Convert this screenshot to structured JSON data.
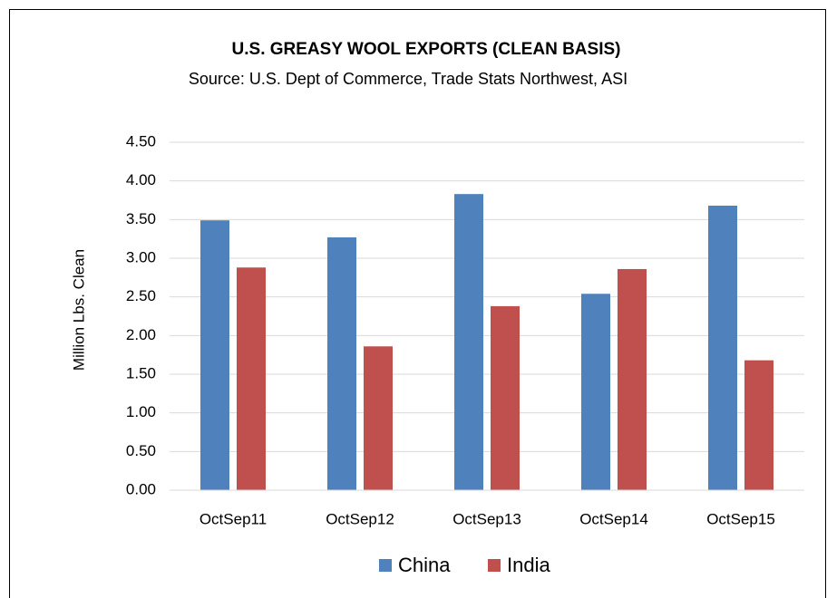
{
  "chart_data": {
    "type": "bar",
    "title": "U.S. GREASY WOOL EXPORTS (CLEAN BASIS)",
    "subtitle": "Source: U.S. Dept of Commerce, Trade Stats Northwest, ASI",
    "y_label": "Million Lbs. Clean",
    "categories": [
      "OctSep11",
      "OctSep12",
      "OctSep13",
      "OctSep14",
      "OctSep15"
    ],
    "series": [
      {
        "name": "China",
        "color": "#4f81bd",
        "values": [
          3.49,
          3.27,
          3.83,
          2.54,
          3.68
        ]
      },
      {
        "name": "India",
        "color": "#c0504d",
        "values": [
          2.88,
          1.86,
          2.38,
          2.86,
          1.68
        ]
      }
    ],
    "ylim": [
      0,
      4.5
    ],
    "yticks": [
      {
        "value": 0,
        "label": "0.00"
      },
      {
        "value": 0.5,
        "label": "0.50"
      },
      {
        "value": 1,
        "label": "1.00"
      },
      {
        "value": 1.5,
        "label": "1.50"
      },
      {
        "value": 2,
        "label": "2.00"
      },
      {
        "value": 2.5,
        "label": "2.50"
      },
      {
        "value": 3,
        "label": "3.00"
      },
      {
        "value": 3.5,
        "label": "3.50"
      },
      {
        "value": 4,
        "label": "4.00"
      },
      {
        "value": 4.5,
        "label": "4.50"
      }
    ],
    "grid": true,
    "legend": "bottom"
  }
}
